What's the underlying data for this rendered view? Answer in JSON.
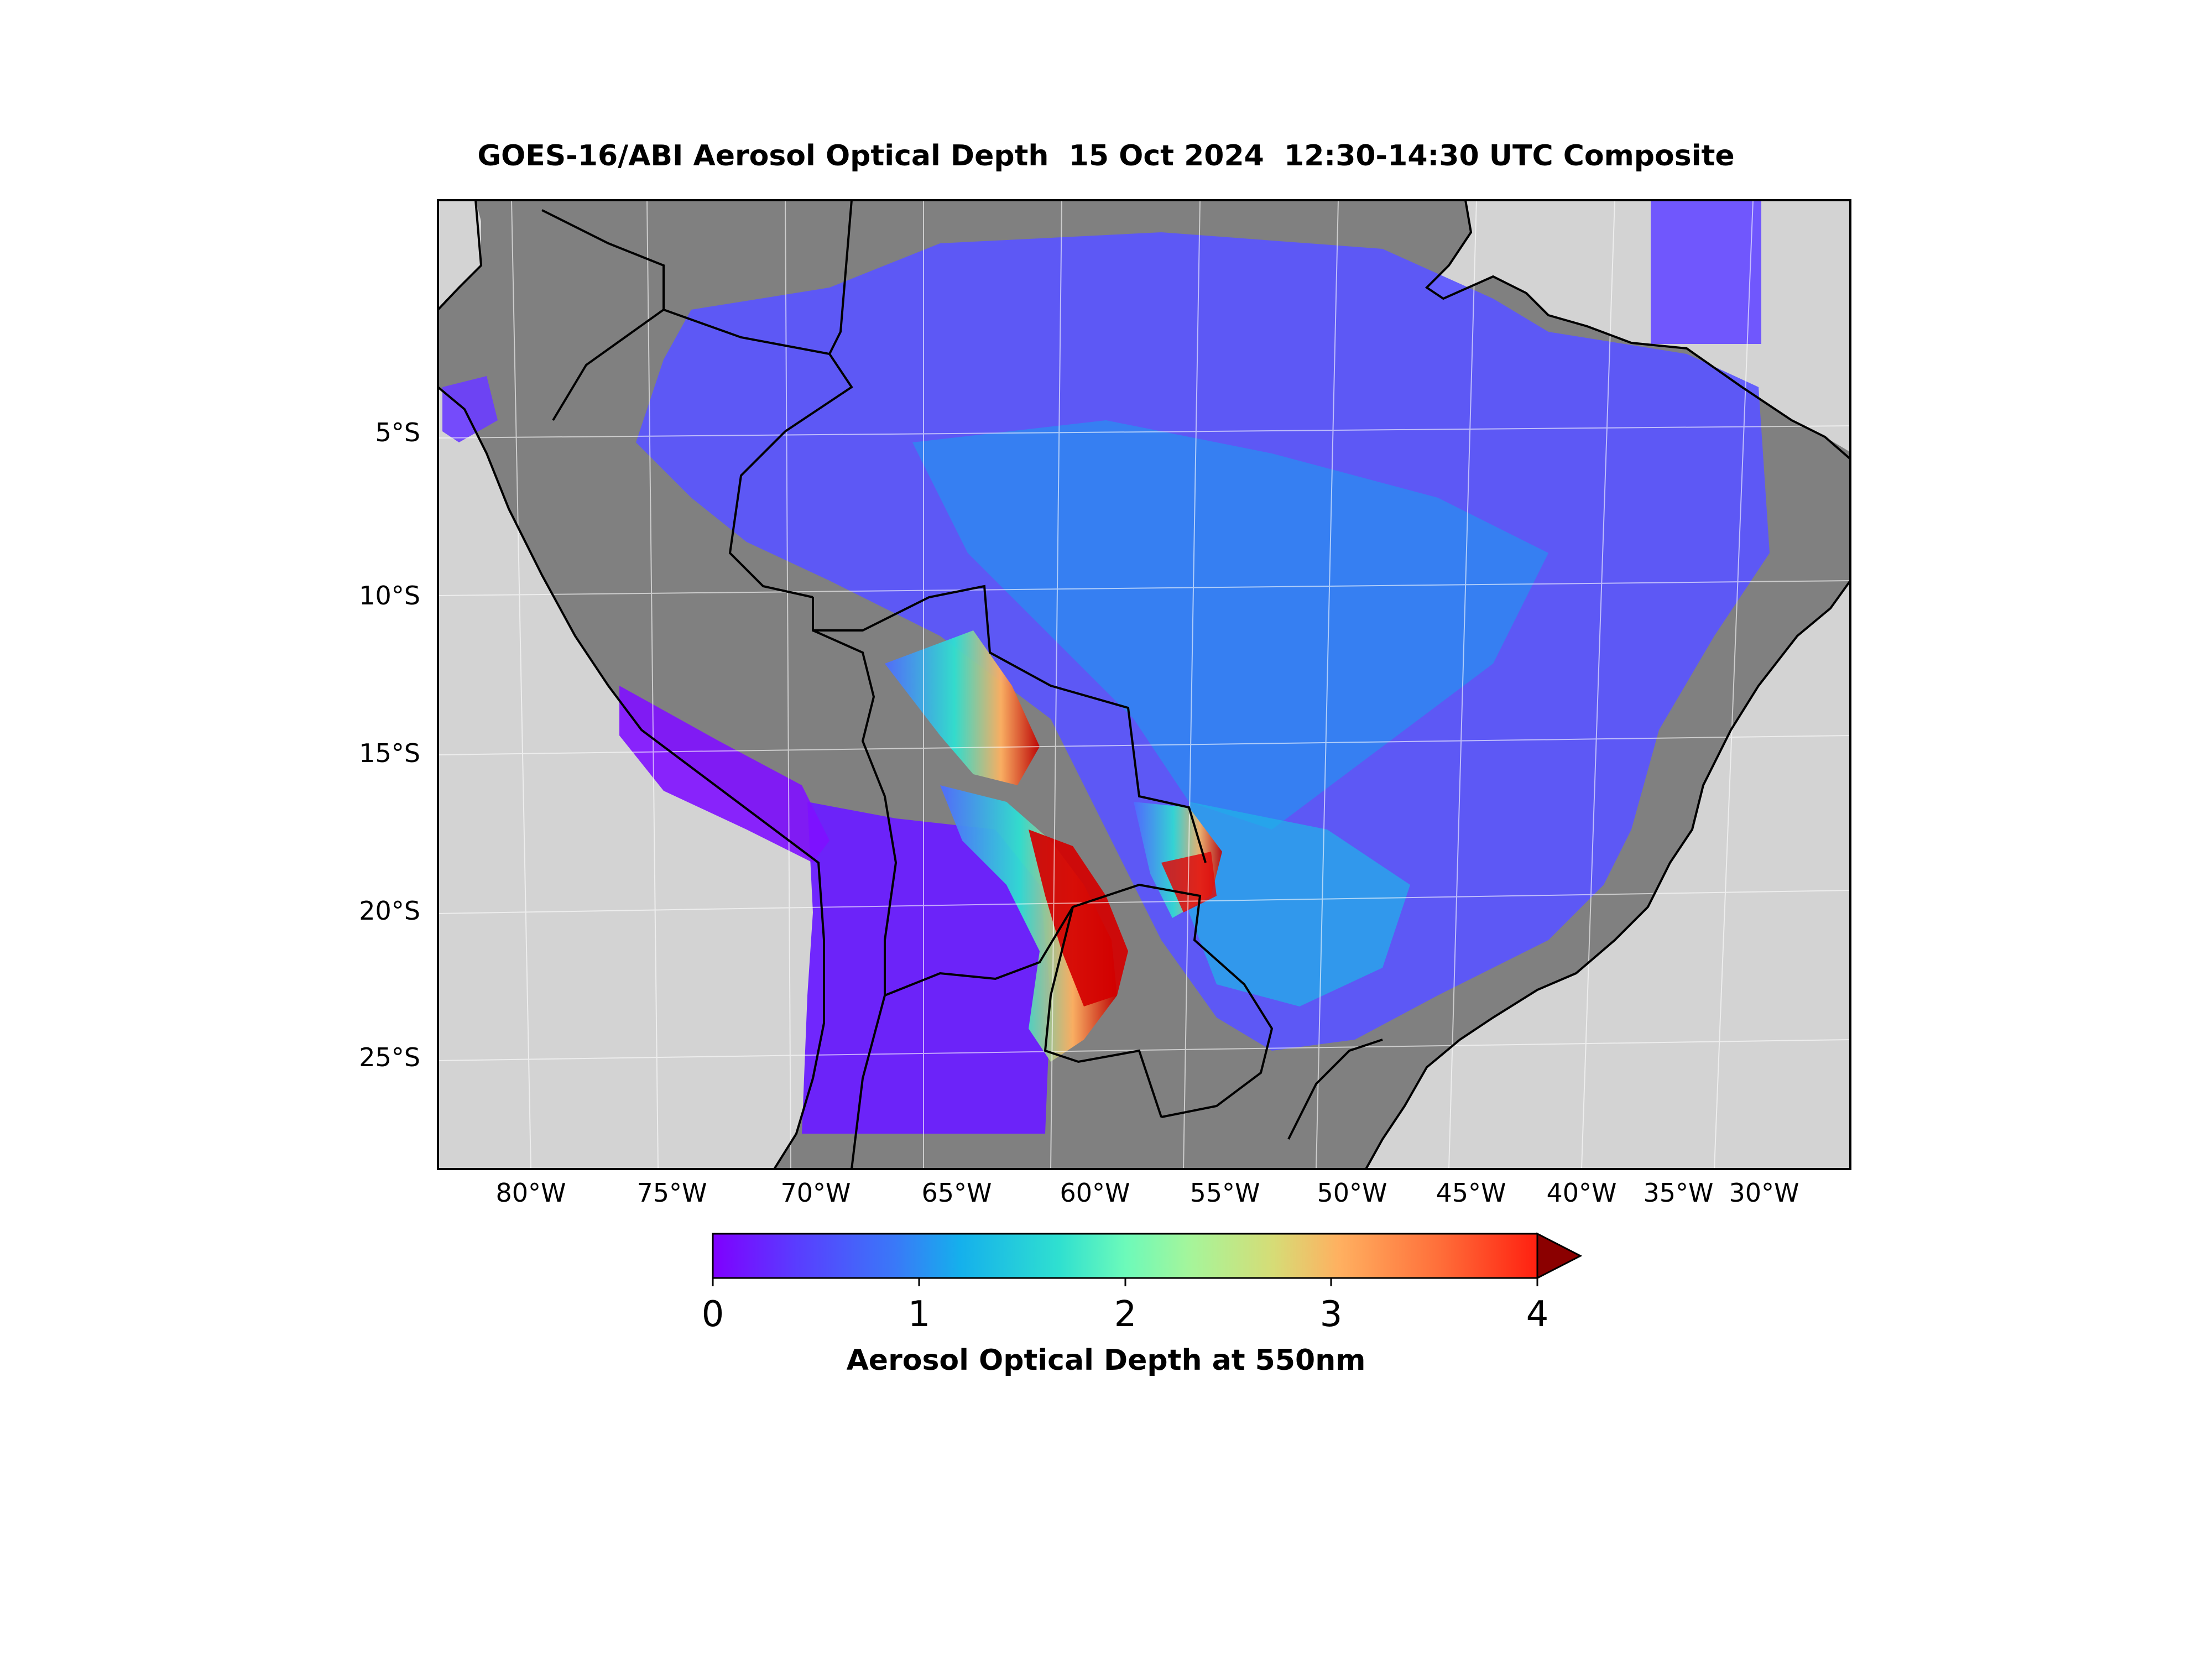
{
  "title": "GOES-16/ABI Aerosol Optical Depth  15 Oct 2024  12:30-14:30 UTC Composite",
  "lat_labels": [
    "5°S",
    "10°S",
    "15°S",
    "20°S",
    "25°S"
  ],
  "lon_labels": [
    "80°W",
    "75°W",
    "70°W",
    "65°W",
    "60°W",
    "55°W",
    "50°W",
    "45°W",
    "40°W",
    "35°W",
    "30°W"
  ],
  "colorbar": {
    "label": "Aerosol Optical Depth at 550nm",
    "ticks": [
      "0",
      "1",
      "2",
      "3",
      "4"
    ],
    "min": 0,
    "max": 4,
    "extend": "max",
    "colormap": [
      "#7f00ff",
      "#5a3cff",
      "#3a78f8",
      "#15b0ec",
      "#2fe0d0",
      "#6cfaba",
      "#a6f59a",
      "#d6dc76",
      "#ffb060",
      "#ff6f3a",
      "#ff2010",
      "#8b0000"
    ]
  },
  "colors": {
    "land_no_data": "#808080",
    "ocean": "#d3d3d3",
    "borders": "#000000"
  }
}
